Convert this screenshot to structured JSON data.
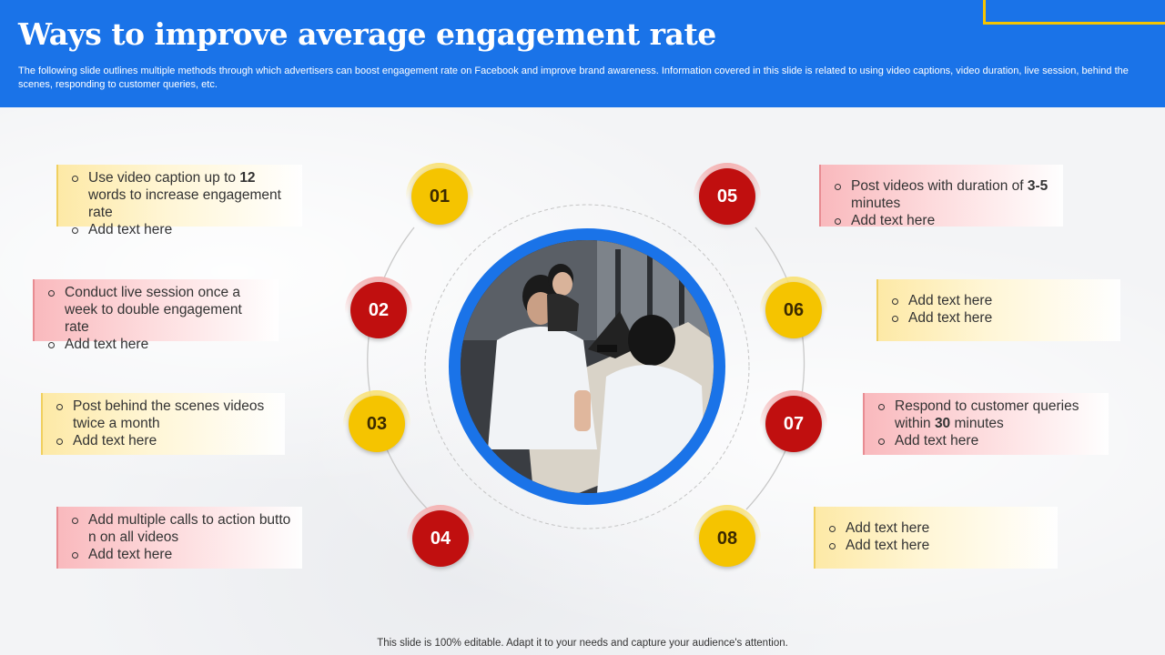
{
  "header": {
    "title": "Ways to improve average engagement rate",
    "subtitle": "The following slide outlines multiple methods through which advertisers can boost engagement rate on Facebook and improve brand awareness. Information covered in this slide is related to using video captions, video duration, live session, behind the scenes, responding to customer queries, etc."
  },
  "colors": {
    "header_blue": "#1a73e8",
    "accent_yellow": "#f5c400",
    "accent_red": "#c00f0f"
  },
  "steps": [
    {
      "number": "01",
      "color": "yellow",
      "items": [
        {
          "pre": "Use video caption up to ",
          "strong": "12",
          "post": " words to increase engagement rate"
        },
        {
          "pre": "Add text here",
          "strong": "",
          "post": ""
        }
      ]
    },
    {
      "number": "02",
      "color": "red",
      "items": [
        {
          "pre": "Conduct live session once a week to double engagement rate",
          "strong": "",
          "post": ""
        },
        {
          "pre": "Add text here",
          "strong": "",
          "post": ""
        }
      ]
    },
    {
      "number": "03",
      "color": "yellow",
      "items": [
        {
          "pre": "Post behind the scenes videos twice a month",
          "strong": "",
          "post": ""
        },
        {
          "pre": "Add text here",
          "strong": "",
          "post": ""
        }
      ]
    },
    {
      "number": "04",
      "color": "red",
      "items": [
        {
          "pre": "Add multiple calls to action butto n on all videos",
          "strong": "",
          "post": ""
        },
        {
          "pre": "Add text here",
          "strong": "",
          "post": ""
        }
      ]
    },
    {
      "number": "05",
      "color": "red",
      "items": [
        {
          "pre": "Post videos with duration of ",
          "strong": "3-5",
          "post": " minutes"
        },
        {
          "pre": "Add text here",
          "strong": "",
          "post": ""
        }
      ]
    },
    {
      "number": "06",
      "color": "yellow",
      "items": [
        {
          "pre": "Add text here",
          "strong": "",
          "post": ""
        },
        {
          "pre": "Add text here",
          "strong": "",
          "post": ""
        }
      ]
    },
    {
      "number": "07",
      "color": "red",
      "items": [
        {
          "pre": "Respond to customer queries within ",
          "strong": "30",
          "post": " minutes"
        },
        {
          "pre": "Add text here",
          "strong": "",
          "post": ""
        }
      ]
    },
    {
      "number": "08",
      "color": "yellow",
      "items": [
        {
          "pre": "Add text here",
          "strong": "",
          "post": ""
        },
        {
          "pre": "Add text here",
          "strong": "",
          "post": ""
        }
      ]
    }
  ],
  "footer": {
    "note": "This slide is 100% editable. Adapt it to your needs and capture your audience's attention."
  }
}
